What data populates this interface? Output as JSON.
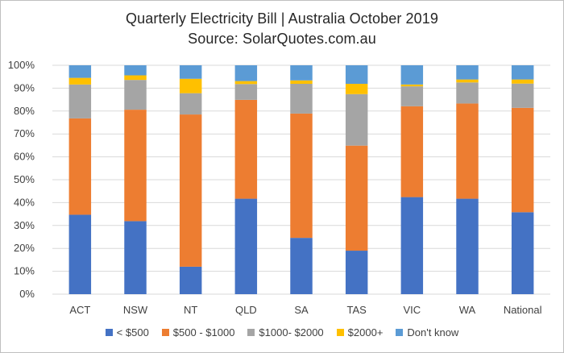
{
  "title": "Quarterly Electricity Bill | Australia October 2019",
  "subtitle": "Source: SolarQuotes.com.au",
  "chart_data": {
    "type": "bar",
    "stacked": true,
    "title": "Quarterly Electricity Bill | Australia October 2019",
    "subtitle": "Source: SolarQuotes.com.au",
    "categories": [
      "ACT",
      "NSW",
      "NT",
      "QLD",
      "SA",
      "TAS",
      "VIC",
      "WA",
      "National"
    ],
    "y_ticks": [
      "0%",
      "10%",
      "20%",
      "30%",
      "40%",
      "50%",
      "60%",
      "70%",
      "80%",
      "90%",
      "100%"
    ],
    "ylim": [
      0,
      100
    ],
    "grid": true,
    "legend_position": "bottom",
    "series": [
      {
        "name": "< $500",
        "color": "#4472C4",
        "values": [
          34.7,
          31.9,
          12.0,
          41.7,
          24.6,
          19.0,
          42.4,
          41.7,
          35.8
        ]
      },
      {
        "name": "$500 - $1000",
        "color": "#ED7D31",
        "values": [
          42.1,
          48.7,
          66.5,
          43.2,
          54.3,
          45.9,
          39.7,
          41.6,
          45.6
        ]
      },
      {
        "name": "$1000- $2000",
        "color": "#A5A5A5",
        "values": [
          14.8,
          13.0,
          9.3,
          6.9,
          13.0,
          22.5,
          8.7,
          9.2,
          10.6
        ]
      },
      {
        "name": "$2000+",
        "color": "#FFC000",
        "values": [
          2.9,
          2.0,
          6.3,
          1.3,
          1.5,
          4.5,
          0.8,
          1.3,
          1.8
        ]
      },
      {
        "name": "Don't know",
        "color": "#5B9BD5",
        "values": [
          5.5,
          4.4,
          5.9,
          6.9,
          6.6,
          8.1,
          8.4,
          6.2,
          6.2
        ]
      }
    ]
  }
}
